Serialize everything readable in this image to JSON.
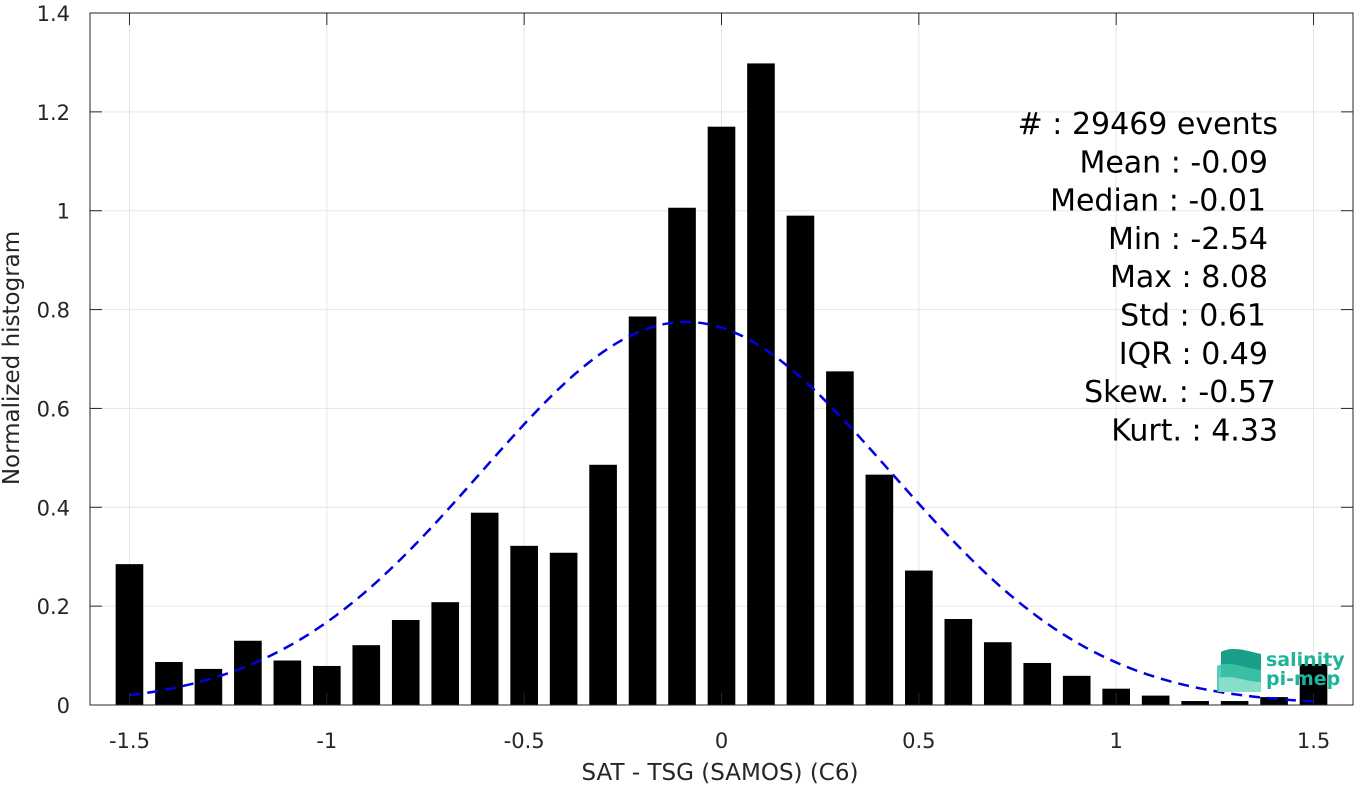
{
  "chart_data": {
    "type": "bar",
    "xlabel": "SAT - TSG (SAMOS) (C6)",
    "ylabel": "Normalized histogram",
    "xlim": [
      -1.6,
      1.6
    ],
    "ylim": [
      0,
      1.4
    ],
    "xticks": [
      "-1.5",
      "-1",
      "-0.5",
      "0",
      "0.5",
      "1",
      "1.5"
    ],
    "xtick_values": [
      -1.5,
      -1,
      -0.5,
      0,
      0.5,
      1,
      1.5
    ],
    "yticks": [
      "0",
      "0.2",
      "0.4",
      "0.6",
      "0.8",
      "1",
      "1.2",
      "1.4"
    ],
    "ytick_values": [
      0,
      0.2,
      0.4,
      0.6,
      0.8,
      1.0,
      1.2,
      1.4
    ],
    "grid": true,
    "bar_color": "#000000",
    "bin_centers": [
      -1.5,
      -1.4,
      -1.3,
      -1.2,
      -1.1,
      -1.0,
      -0.9,
      -0.8,
      -0.7,
      -0.6,
      -0.5,
      -0.4,
      -0.3,
      -0.2,
      -0.1,
      0.0,
      0.1,
      0.2,
      0.3,
      0.4,
      0.5,
      0.6,
      0.7,
      0.8,
      0.9,
      1.0,
      1.1,
      1.2,
      1.3,
      1.4,
      1.5
    ],
    "values": [
      0.285,
      0.087,
      0.073,
      0.13,
      0.09,
      0.079,
      0.121,
      0.172,
      0.208,
      0.389,
      0.322,
      0.308,
      0.486,
      0.786,
      1.006,
      1.17,
      1.298,
      0.99,
      0.675,
      0.466,
      0.272,
      0.174,
      0.127,
      0.085,
      0.059,
      0.033,
      0.019,
      0.008,
      0.008,
      0.016,
      0.083
    ],
    "fit": {
      "type": "gaussian",
      "mean": -0.09,
      "std": 0.52,
      "peak": 0.775,
      "x_range": [
        -1.5,
        1.5
      ],
      "color": "#0000e0",
      "style": "dashed"
    },
    "annotations": [
      {
        "label": "#  ",
        "value": ": 29469 events"
      },
      {
        "label": "Mean ",
        "value": ": -0.09"
      },
      {
        "label": "Median ",
        "value": ": -0.01"
      },
      {
        "label": "Min ",
        "value": ": -2.54"
      },
      {
        "label": "Max ",
        "value": ": 8.08"
      },
      {
        "label": "Std ",
        "value": ": 0.61"
      },
      {
        "label": "IQR ",
        "value": ": 0.49"
      },
      {
        "label": "Skew. ",
        "value": ": -0.57"
      },
      {
        "label": "Kurt. ",
        "value": ": 4.33"
      }
    ]
  },
  "logo": {
    "name": "salinity-pi-mep-logo",
    "line1": "salinity",
    "line2": "pi-mep",
    "color": "#1fb39a"
  }
}
